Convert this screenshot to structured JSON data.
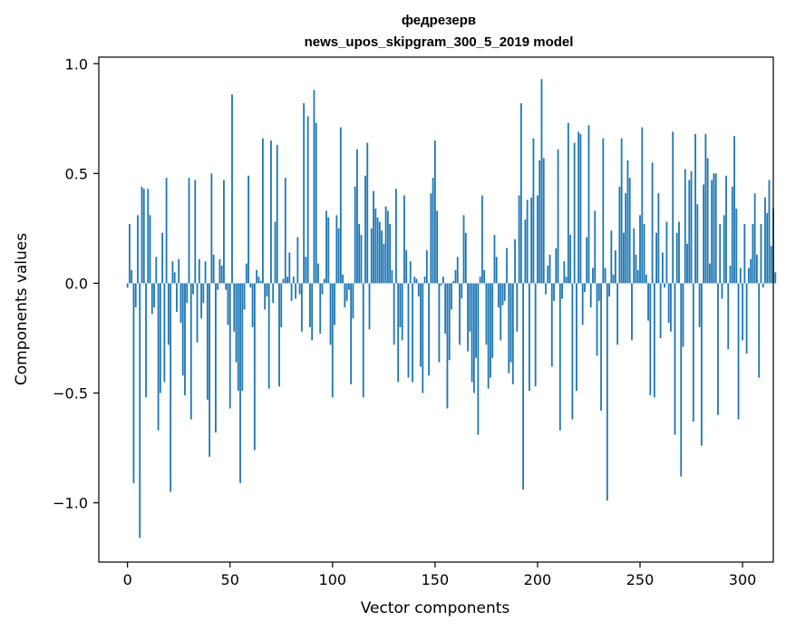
{
  "chart_data": {
    "type": "bar",
    "title": "федрезерв",
    "subtitle": "news_upos_skipgram_300_5_2019 model",
    "xlabel": "Vector components",
    "ylabel": "Components values",
    "xlim": [
      -14,
      315
    ],
    "ylim": [
      -1.27,
      1.03
    ],
    "x_ticks": [
      0,
      50,
      100,
      150,
      200,
      250,
      300
    ],
    "x_tick_labels": [
      "0",
      "50",
      "100",
      "150",
      "200",
      "250",
      "300"
    ],
    "y_ticks": [
      -1.0,
      -0.5,
      0.0,
      0.5,
      1.0
    ],
    "y_tick_labels": [
      "−1.0",
      "−0.5",
      "0.0",
      "0.5",
      "1.0"
    ],
    "bar_color": "#1f77b4",
    "grid": false,
    "values": [
      -0.02,
      0.27,
      0.06,
      -0.91,
      -0.11,
      0.31,
      -1.16,
      0.44,
      0.43,
      -0.52,
      0.43,
      0.31,
      -0.14,
      -0.11,
      0.12,
      -0.67,
      -0.5,
      0.23,
      -0.45,
      0.48,
      -0.28,
      -0.95,
      0.1,
      0.05,
      -0.13,
      0.11,
      -0.18,
      -0.42,
      -0.51,
      -0.09,
      0.48,
      -0.62,
      -0.05,
      0.47,
      -0.27,
      0.11,
      -0.16,
      -0.09,
      0.1,
      -0.53,
      -0.79,
      0.5,
      0.13,
      -0.68,
      -0.03,
      0.11,
      0.08,
      0.47,
      -0.03,
      -0.19,
      -0.57,
      0.86,
      -0.22,
      -0.36,
      -0.49,
      -0.91,
      -0.49,
      -0.12,
      0.09,
      0.49,
      -0.02,
      -0.2,
      -0.76,
      0.06,
      0.03,
      0.01,
      0.66,
      -0.12,
      -0.06,
      -0.48,
      0.65,
      -0.09,
      0.28,
      0.63,
      -0.47,
      -0.2,
      0.02,
      0.48,
      0.03,
      0.14,
      -0.08,
      0.03,
      -0.07,
      0.21,
      -0.05,
      -0.22,
      0.82,
      0.12,
      0.76,
      -0.2,
      -0.26,
      0.88,
      0.73,
      0.09,
      -0.23,
      -0.05,
      0.02,
      0.33,
      0.3,
      -0.28,
      -0.52,
      -0.19,
      0.31,
      0.25,
      0.71,
      0.04,
      -0.11,
      -0.08,
      -0.03,
      -0.46,
      -0.16,
      0.44,
      0.61,
      0.27,
      0.22,
      -0.52,
      0.49,
      0.64,
      -0.21,
      0.25,
      0.42,
      0.34,
      0.3,
      0.28,
      0.24,
      0.18,
      0.35,
      0.33,
      0.27,
      0.06,
      -0.28,
      0.43,
      -0.45,
      -0.2,
      -0.26,
      0.4,
      0.15,
      -0.43,
      0.1,
      -0.45,
      0.03,
      0.02,
      -0.06,
      -0.38,
      -0.5,
      0.03,
      0.15,
      -0.42,
      0.41,
      0.48,
      0.65,
      0.33,
      -0.36,
      -0.01,
      0.03,
      -0.23,
      -0.57,
      -0.35,
      -0.12,
      0.01,
      0.06,
      0.12,
      -0.28,
      -0.07,
      0.31,
      0.23,
      -0.31,
      -0.22,
      -0.45,
      -0.5,
      -0.34,
      -0.69,
      0.03,
      0.4,
      0.06,
      -0.28,
      -0.48,
      -0.43,
      -0.34,
      0.22,
      0.12,
      -0.11,
      -0.26,
      -0.1,
      -0.08,
      0.16,
      -0.41,
      -0.36,
      -0.46,
      0.2,
      -0.22,
      0.4,
      0.82,
      -0.94,
      0.29,
      0.38,
      -0.49,
      0.39,
      0.66,
      -0.47,
      0.4,
      0.56,
      0.93,
      0.57,
      -0.05,
      0.08,
      0.13,
      -0.38,
      -0.08,
      0.16,
      0.61,
      -0.67,
      -0.07,
      0.1,
      0.03,
      0.73,
      0.22,
      -0.62,
      0.64,
      -0.49,
      0.69,
      0.68,
      -0.19,
      -0.04,
      0.21,
      0.72,
      -0.11,
      0.07,
      0.33,
      -0.33,
      -0.08,
      -0.58,
      0.66,
      0.07,
      -0.99,
      -0.06,
      0.24,
      0.04,
      0.15,
      -0.28,
      0.44,
      0.66,
      0.23,
      0.41,
      0.56,
      0.48,
      -0.26,
      0.25,
      0.13,
      0.06,
      0.31,
      0.71,
      0.27,
      0.04,
      -0.17,
      -0.51,
      0.55,
      -0.52,
      0.23,
      0.41,
      -0.25,
      0.14,
      -0.02,
      0.28,
      -0.18,
      -0.22,
      0.69,
      -0.69,
      0.23,
      0.28,
      -0.88,
      -0.29,
      0.52,
      0.18,
      0.47,
      0.51,
      -0.63,
      0.68,
      0.36,
      -0.2,
      -0.74,
      0.45,
      0.68,
      0.57,
      0.09,
      0.47,
      0.5,
      0.5,
      -0.6,
      0.27,
      -0.07,
      0.31,
      0.49,
      -0.3,
      0.08,
      0.44,
      0.67,
      0.34,
      -0.62,
      0.07,
      -0.26,
      0.27,
      -0.32,
      0.07,
      0.11,
      0.27,
      0.41,
      0.13,
      -0.43,
      0.27,
      -0.02,
      0.39,
      0.32,
      0.47,
      0.17,
      0.34,
      0.05
    ]
  }
}
